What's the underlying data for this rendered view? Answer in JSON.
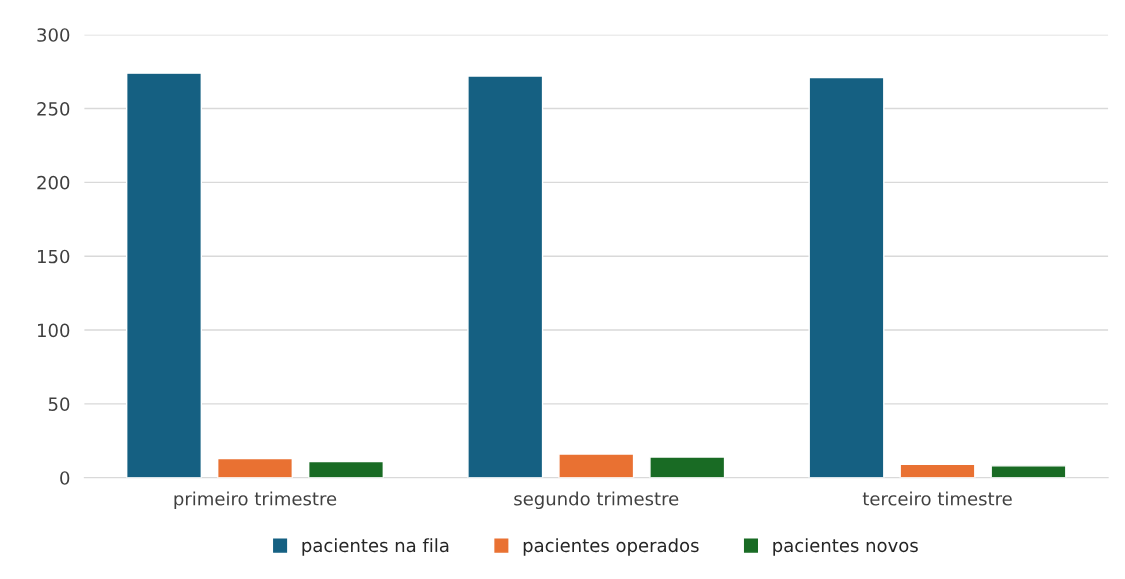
{
  "chart_data": {
    "type": "bar",
    "categories": [
      "primeiro trimestre",
      "segundo trimestre",
      "terceiro timestre"
    ],
    "series": [
      {
        "name": "pacientes na fila",
        "color": "#156082",
        "values": [
          274,
          272,
          271
        ]
      },
      {
        "name": "pacientes operados",
        "color": "#e97132",
        "values": [
          13,
          16,
          9
        ]
      },
      {
        "name": "pacientes novos",
        "color": "#196b24",
        "values": [
          11,
          14,
          8
        ]
      }
    ],
    "ylim": [
      0,
      300
    ],
    "yticks": [
      0,
      50,
      100,
      150,
      200,
      250,
      300
    ],
    "grid": "y",
    "legend": "bottom"
  }
}
